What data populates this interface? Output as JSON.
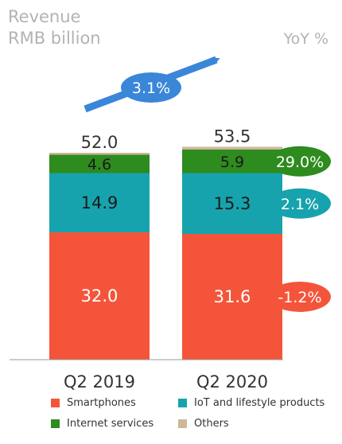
{
  "chart_data": {
    "type": "bar",
    "stacked": true,
    "ylabel_lines": [
      "Revenue",
      "RMB billion"
    ],
    "y2label": "YoY %",
    "categories": [
      "Q2 2019",
      "Q2 2020"
    ],
    "series": [
      {
        "name": "Smartphones",
        "values": [
          32.0,
          31.6
        ],
        "labels": [
          "32.0",
          "31.6"
        ],
        "color": "#f4553a",
        "yoy": "-1.2%"
      },
      {
        "name": "IoT and lifestyle products",
        "values": [
          14.9,
          15.3
        ],
        "labels": [
          "14.9",
          "15.3"
        ],
        "color": "#17a3ad",
        "yoy": "2.1%"
      },
      {
        "name": "Internet services",
        "values": [
          4.6,
          5.9
        ],
        "labels": [
          "4.6",
          "5.9"
        ],
        "color": "#2e8b1e",
        "yoy": "29.0%"
      },
      {
        "name": "Others",
        "values": [
          0.5,
          0.7
        ],
        "labels": [
          "",
          ""
        ],
        "color": "#cdb89a",
        "yoy": ""
      }
    ],
    "totals": [
      "52.0",
      "53.5"
    ],
    "total_yoy": "3.1%",
    "arrow_color": "#3a86d9",
    "legend_order": [
      "Smartphones",
      "IoT and lifestyle products",
      "Internet services",
      "Others"
    ],
    "legend_position": "bottom"
  }
}
